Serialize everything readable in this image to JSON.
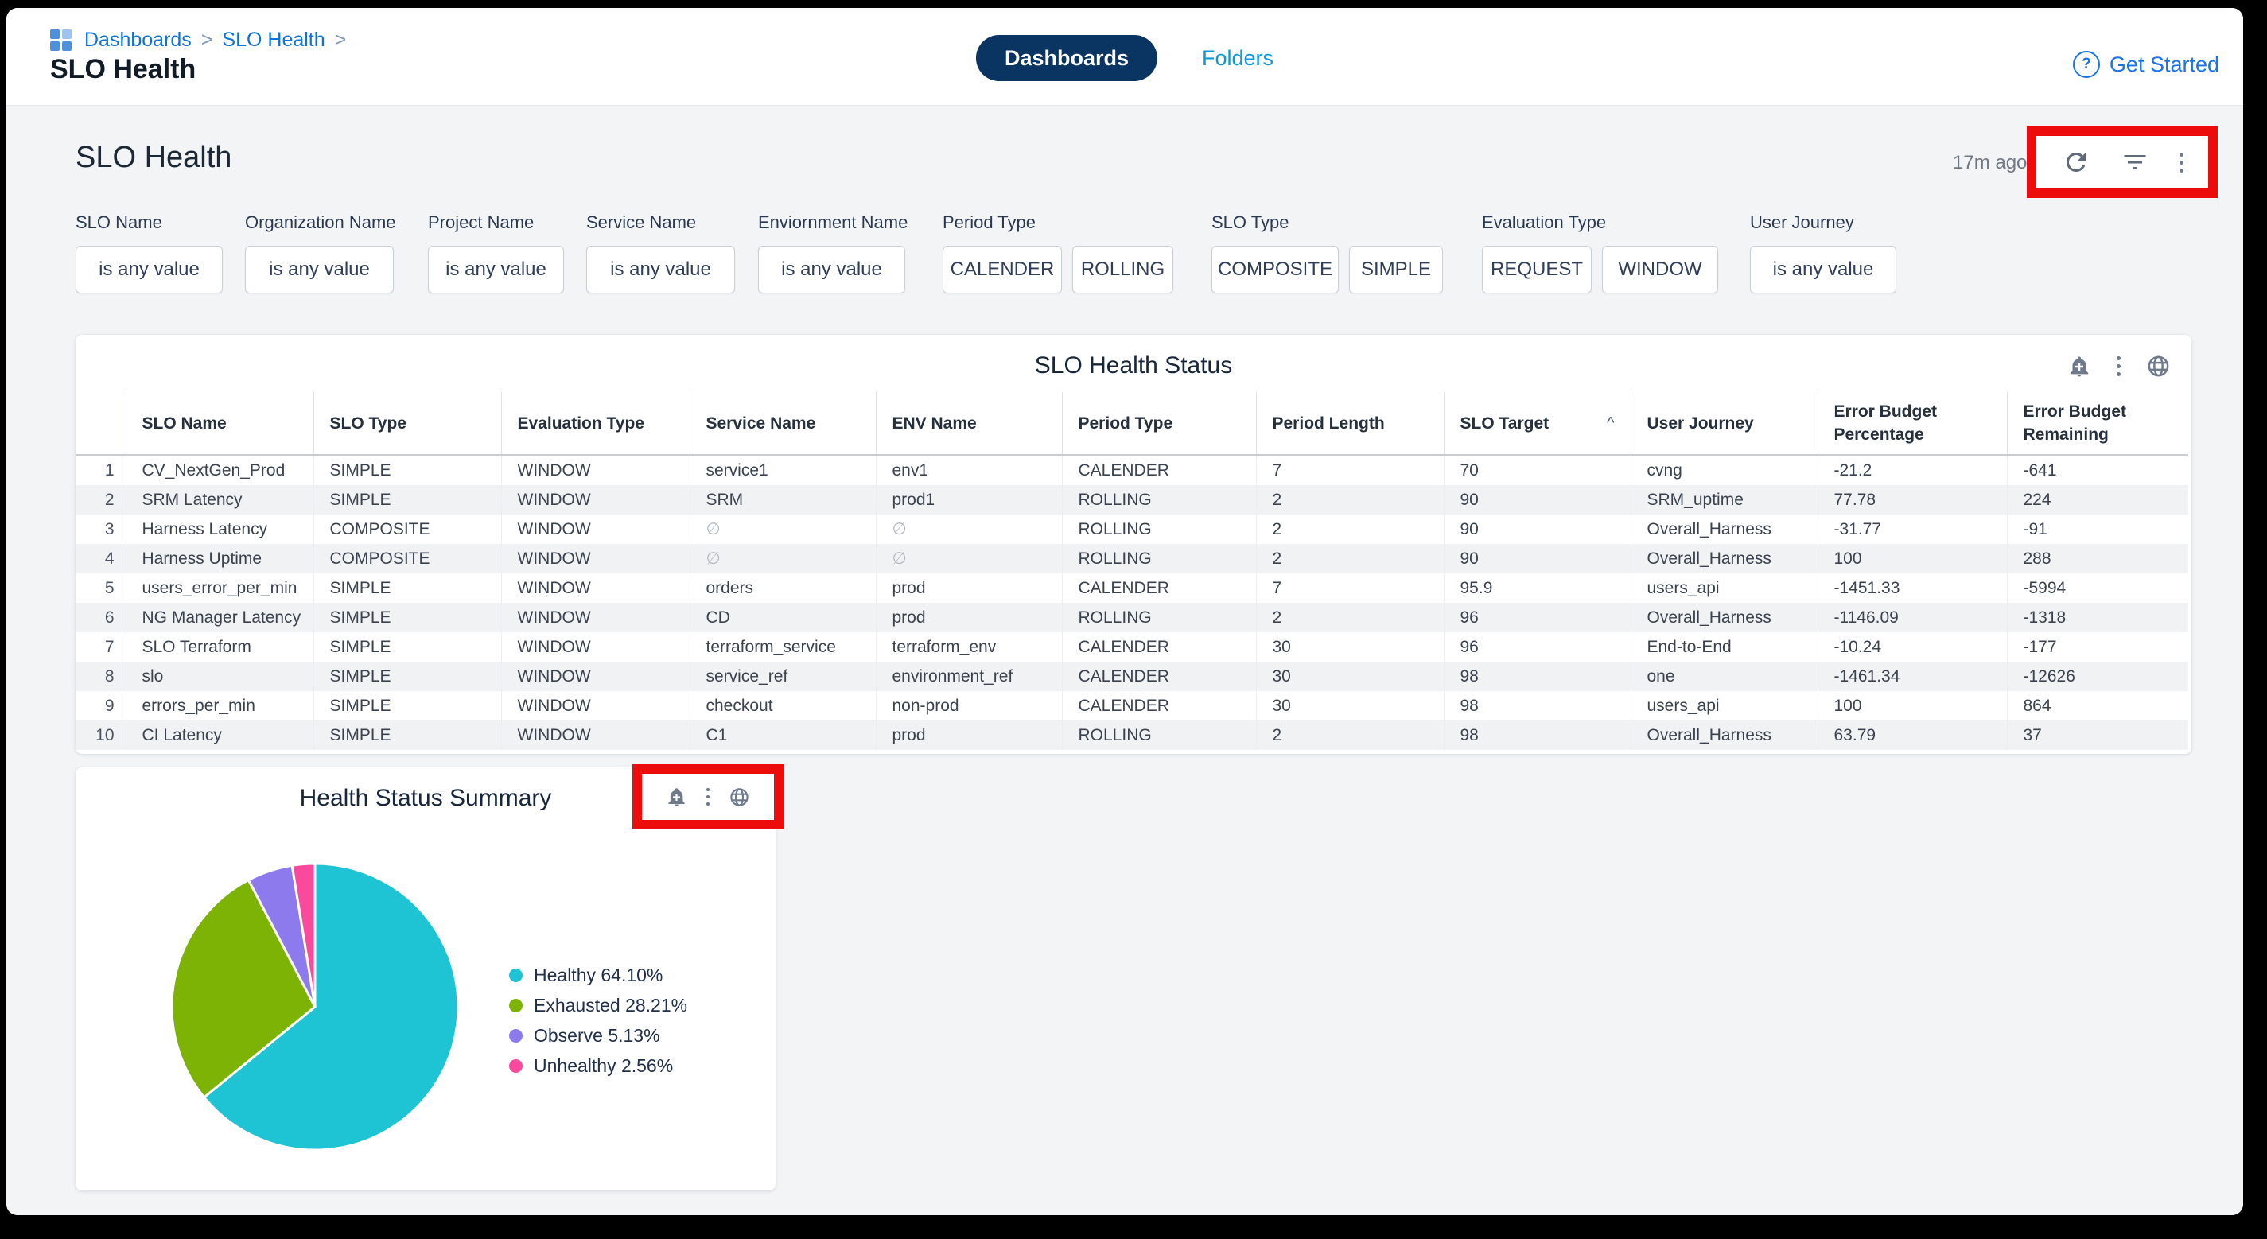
{
  "window": {
    "breadcrumb": [
      "Dashboards",
      "SLO Health"
    ],
    "page_title": "SLO Health",
    "tabs": [
      {
        "label": "Dashboards",
        "active": true
      },
      {
        "label": "Folders",
        "active": false
      }
    ],
    "get_started": "Get Started"
  },
  "dashboard": {
    "title": "SLO Health",
    "last_refreshed": "17m ago"
  },
  "filters": [
    {
      "label": "SLO Name",
      "boxes": [
        "is any value"
      ]
    },
    {
      "label": "Organization Name",
      "boxes": [
        "is any value"
      ]
    },
    {
      "label": "Project Name",
      "boxes": [
        "is any value"
      ]
    },
    {
      "label": "Service Name",
      "boxes": [
        "is any value"
      ]
    },
    {
      "label": "Enviornment Name",
      "boxes": [
        "is any value"
      ]
    },
    {
      "label": "Period Type",
      "boxes": [
        "CALENDER",
        "ROLLING"
      ]
    },
    {
      "label": "SLO Type",
      "boxes": [
        "COMPOSITE",
        "SIMPLE"
      ]
    },
    {
      "label": "Evaluation Type",
      "boxes": [
        "REQUEST",
        "WINDOW"
      ]
    },
    {
      "label": "User Journey",
      "boxes": [
        "is any value"
      ]
    }
  ],
  "table_card": {
    "title": "SLO Health Status",
    "columns": [
      "SLO Name",
      "SLO Type",
      "Evaluation Type",
      "Service Name",
      "ENV Name",
      "Period Type",
      "Period Length",
      "SLO Target",
      "User Journey",
      "Error Budget Percentage",
      "Error Budget Remaining"
    ],
    "sort_column_index": 7,
    "rows": [
      [
        "CV_NextGen_Prod",
        "SIMPLE",
        "WINDOW",
        "service1",
        "env1",
        "CALENDER",
        "7",
        "70",
        "cvng",
        "-21.2",
        "-641"
      ],
      [
        "SRM Latency",
        "SIMPLE",
        "WINDOW",
        "SRM",
        "prod1",
        "ROLLING",
        "2",
        "90",
        "SRM_uptime",
        "77.78",
        "224"
      ],
      [
        "Harness Latency",
        "COMPOSITE",
        "WINDOW",
        "∅",
        "∅",
        "ROLLING",
        "2",
        "90",
        "Overall_Harness",
        "-31.77",
        "-91"
      ],
      [
        "Harness Uptime",
        "COMPOSITE",
        "WINDOW",
        "∅",
        "∅",
        "ROLLING",
        "2",
        "90",
        "Overall_Harness",
        "100",
        "288"
      ],
      [
        "users_error_per_min",
        "SIMPLE",
        "WINDOW",
        "orders",
        "prod",
        "CALENDER",
        "7",
        "95.9",
        "users_api",
        "-1451.33",
        "-5994"
      ],
      [
        "NG Manager Latency",
        "SIMPLE",
        "WINDOW",
        "CD",
        "prod",
        "ROLLING",
        "2",
        "96",
        "Overall_Harness",
        "-1146.09",
        "-1318"
      ],
      [
        "SLO Terraform",
        "SIMPLE",
        "WINDOW",
        "terraform_service",
        "terraform_env",
        "CALENDER",
        "30",
        "96",
        "End-to-End",
        "-10.24",
        "-177"
      ],
      [
        "slo",
        "SIMPLE",
        "WINDOW",
        "service_ref",
        "environment_ref",
        "CALENDER",
        "30",
        "98",
        "one",
        "-1461.34",
        "-12626"
      ],
      [
        "errors_per_min",
        "SIMPLE",
        "WINDOW",
        "checkout",
        "non-prod",
        "CALENDER",
        "30",
        "98",
        "users_api",
        "100",
        "864"
      ],
      [
        "CI Latency",
        "SIMPLE",
        "WINDOW",
        "C1",
        "prod",
        "ROLLING",
        "2",
        "98",
        "Overall_Harness",
        "63.79",
        "37"
      ]
    ]
  },
  "summary_card": {
    "title": "Health Status Summary"
  },
  "chart_data": {
    "type": "pie",
    "title": "Health Status Summary",
    "labels": [
      "Healthy",
      "Exhausted",
      "Observe",
      "Unhealthy"
    ],
    "values": [
      64.1,
      28.21,
      5.13,
      2.56
    ],
    "legend": [
      "Healthy 64.10%",
      "Exhausted 28.21%",
      "Observe 5.13%",
      "Unhealthy 2.56%"
    ],
    "colors": [
      "#1ec3d4",
      "#7db305",
      "#8d7bee",
      "#fb4a9d"
    ],
    "legend_position": "right",
    "start_angle_deg": -90,
    "direction": "clockwise"
  }
}
